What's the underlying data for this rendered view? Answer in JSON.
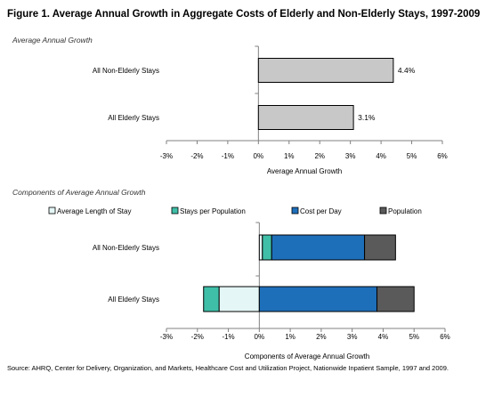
{
  "title": "Figure 1. Average Annual Growth in Aggregate Costs of Elderly and Non-Elderly Stays, 1997-2009",
  "source": "Source: AHRQ, Center for Delivery, Organization, and Markets, Healthcare Cost and Utilization Project, Nationwide Inpatient Sample, 1997 and 2009.",
  "chart_data": [
    {
      "type": "bar",
      "orientation": "horizontal",
      "section_label": "Average Annual Growth",
      "categories": [
        "All Non-Elderly Stays",
        "All Elderly Stays"
      ],
      "values": [
        4.4,
        3.1
      ],
      "data_labels": [
        "4.4%",
        "3.1%"
      ],
      "xlabel": "Average Annual Growth",
      "xlim": [
        -3,
        6
      ],
      "xticks": [
        "-3%",
        "-2%",
        "-1%",
        "0%",
        "1%",
        "2%",
        "3%",
        "4%",
        "5%",
        "6%"
      ],
      "color": "#c8c8c8"
    },
    {
      "type": "bar",
      "orientation": "horizontal",
      "stacked": true,
      "section_label": "Components of Average Annual Growth",
      "categories": [
        "All Non-Elderly Stays",
        "All Elderly Stays"
      ],
      "series": [
        {
          "name": "Average Length of Stay",
          "values": [
            0.1,
            -1.3
          ],
          "color": "#e4f6f5"
        },
        {
          "name": "Stays per Population",
          "values": [
            0.3,
            -0.5
          ],
          "color": "#3fbfa8"
        },
        {
          "name": "Cost per Day",
          "values": [
            3.0,
            3.8
          ],
          "color": "#1e6fba"
        },
        {
          "name": "Population",
          "values": [
            1.0,
            1.2
          ],
          "color": "#5a5a5a"
        }
      ],
      "xlabel": "Components of Average Annual Growth",
      "xlim": [
        -3,
        6
      ],
      "xticks": [
        "-3%",
        "-2%",
        "-1%",
        "0%",
        "1%",
        "2%",
        "3%",
        "4%",
        "5%",
        "6%"
      ],
      "legend_position": "top"
    }
  ]
}
